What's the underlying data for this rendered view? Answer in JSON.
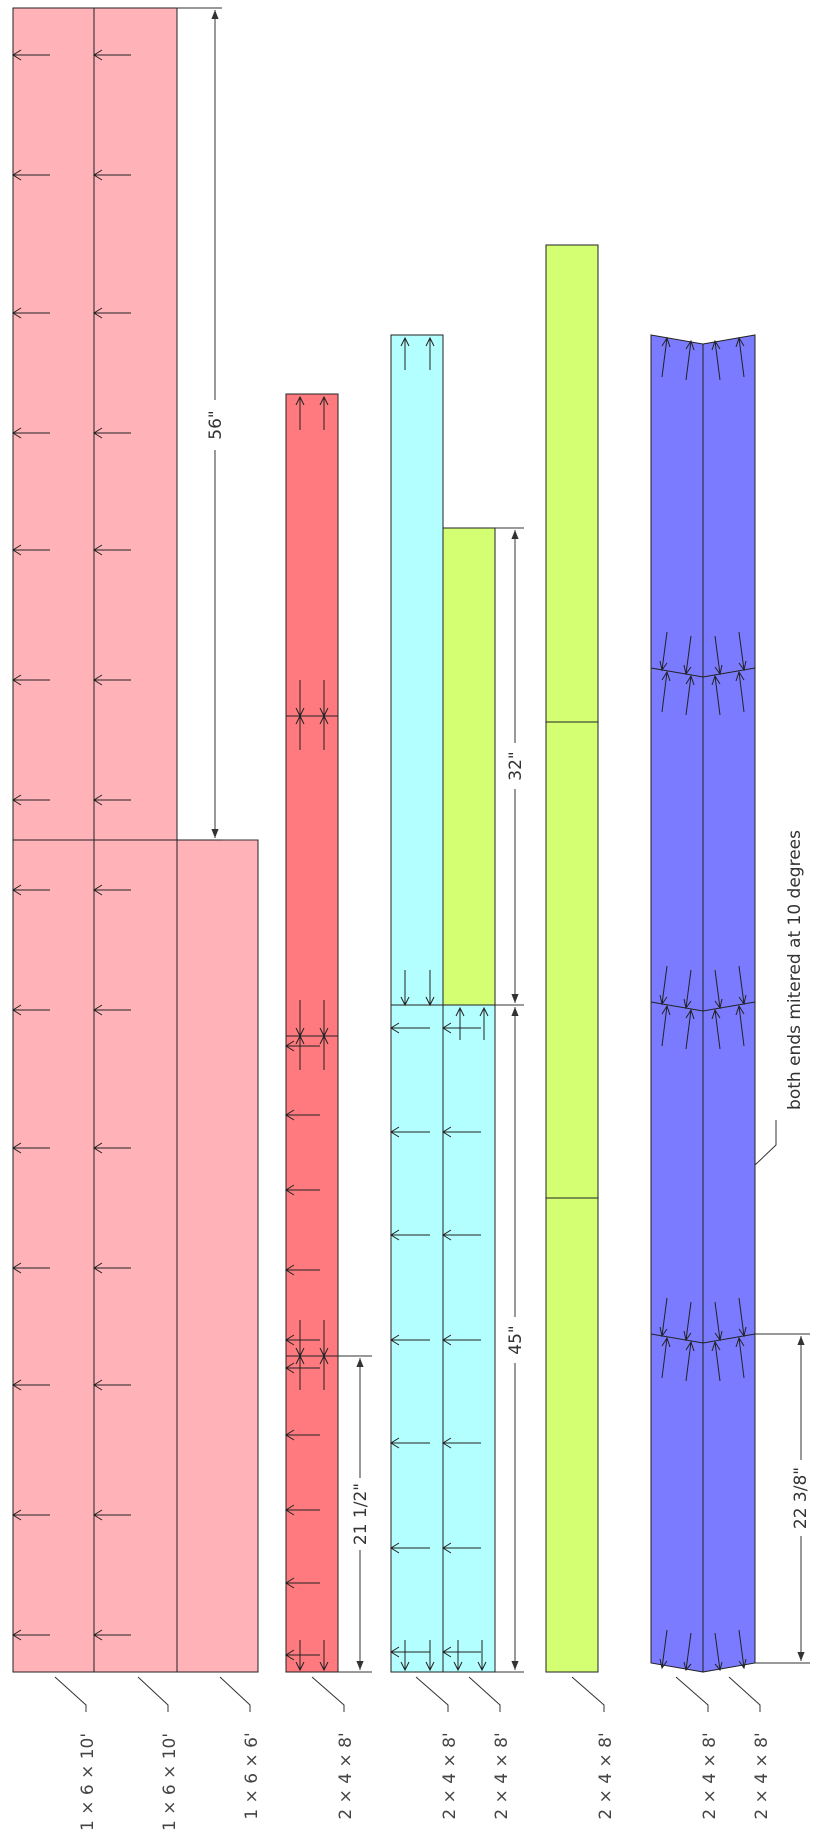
{
  "colors": {
    "pink": "#ffb3b8",
    "red": "#ff7a7e",
    "cyan": "#b3ffff",
    "lime": "#d4ff73",
    "blue": "#7b7bff",
    "line": "#222222"
  },
  "labels": {
    "b1": "1 × 6 × 10'",
    "b2": "1 × 6 × 10'",
    "b3": "1 × 6 × 6'",
    "b4": "2 × 4 × 8'",
    "b5": "2 × 4 × 8'",
    "b6": "2 × 4 × 8'",
    "b7": "2 × 4 × 8'",
    "b8": "2 × 4 × 8'",
    "b9": "2 × 4 × 8'"
  },
  "dimensions": {
    "d56": "56\"",
    "d32": "32\"",
    "d45": "45\"",
    "d21": "21 1/2\"",
    "d22": "22 3/8\""
  },
  "note": "both ends mitered at 10 degrees"
}
